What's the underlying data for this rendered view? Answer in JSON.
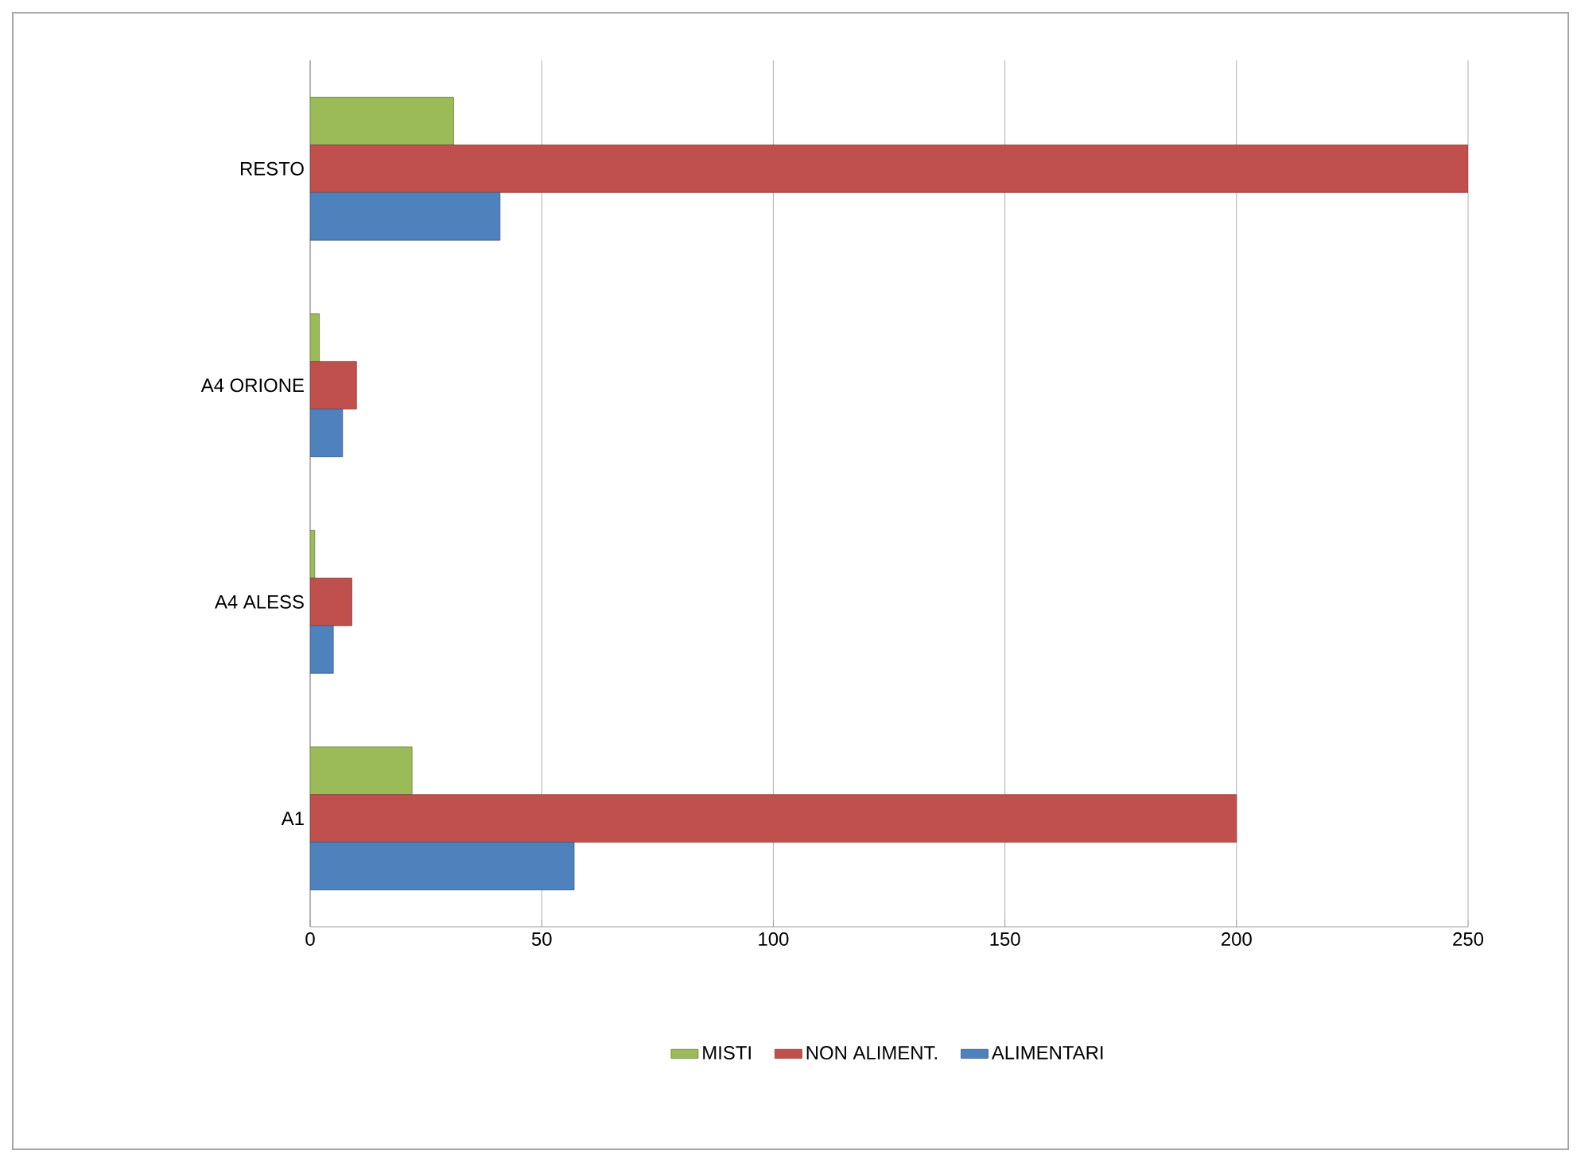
{
  "chart_data": {
    "type": "bar",
    "orientation": "horizontal",
    "categories": [
      "RESTO",
      "A4 ORIONE",
      "A4 ALESS",
      "A1"
    ],
    "series": [
      {
        "name": "MISTI",
        "color": "#9bbb59",
        "values": [
          31,
          2,
          1,
          22
        ]
      },
      {
        "name": "NON ALIMENT.",
        "color": "#c0504d",
        "values": [
          250,
          10,
          9,
          200
        ]
      },
      {
        "name": "ALIMENTARI",
        "color": "#4f81bd",
        "values": [
          41,
          7,
          5,
          57
        ]
      }
    ],
    "xlim": [
      0,
      250
    ],
    "xticks": [
      0,
      50,
      100,
      150,
      200,
      250
    ],
    "grid": "x",
    "legend": "bottom"
  }
}
